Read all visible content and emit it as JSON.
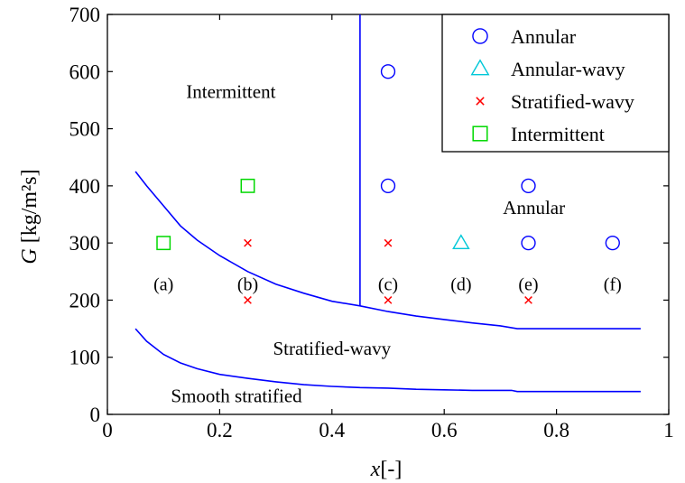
{
  "colors": {
    "boundary": "#0000ff",
    "annular": "#0000ff",
    "annular_wavy": "#00c8d8",
    "stratified_wavy": "#ff0000",
    "intermittent": "#00d800",
    "axis": "#000000"
  },
  "chart_data": {
    "type": "scatter",
    "title": "",
    "xlabel_italic": "x",
    "xlabel_unit": "[-]",
    "ylabel_italic": "G",
    "ylabel_unit": "[kg/m²s]",
    "xlim": [
      0,
      1
    ],
    "ylim": [
      0,
      700
    ],
    "xticks": [
      0,
      0.2,
      0.4,
      0.6,
      0.8,
      1
    ],
    "xtick_labels": [
      "0",
      "0.2",
      "0.4",
      "0.6",
      "0.8",
      "1"
    ],
    "yticks": [
      0,
      100,
      200,
      300,
      400,
      500,
      600,
      700
    ],
    "ytick_labels": [
      "0",
      "100",
      "200",
      "300",
      "400",
      "500",
      "600",
      "700"
    ],
    "grid": false,
    "legend_position": "top-right",
    "series": [
      {
        "name": "Annular",
        "marker": "circle",
        "color": "#0000ff",
        "points": [
          [
            0.5,
            600
          ],
          [
            0.5,
            400
          ],
          [
            0.75,
            400
          ],
          [
            0.75,
            300
          ],
          [
            0.9,
            300
          ]
        ]
      },
      {
        "name": "Annular-wavy",
        "marker": "triangle",
        "color": "#00c8d8",
        "points": [
          [
            0.63,
            300
          ]
        ]
      },
      {
        "name": "Stratified-wavy",
        "marker": "x",
        "color": "#ff0000",
        "points": [
          [
            0.25,
            300
          ],
          [
            0.25,
            200
          ],
          [
            0.5,
            300
          ],
          [
            0.5,
            200
          ],
          [
            0.75,
            200
          ]
        ]
      },
      {
        "name": "Intermittent",
        "marker": "square",
        "color": "#00d800",
        "points": [
          [
            0.1,
            300
          ],
          [
            0.25,
            400
          ]
        ]
      }
    ],
    "boundaries": [
      {
        "name": "intermittent-stratified-wavy-annular",
        "points": [
          [
            0.05,
            425
          ],
          [
            0.07,
            400
          ],
          [
            0.1,
            365
          ],
          [
            0.13,
            330
          ],
          [
            0.16,
            305
          ],
          [
            0.2,
            278
          ],
          [
            0.25,
            250
          ],
          [
            0.3,
            228
          ],
          [
            0.35,
            212
          ],
          [
            0.4,
            198
          ],
          [
            0.45,
            190
          ],
          [
            0.5,
            180
          ],
          [
            0.55,
            172
          ],
          [
            0.6,
            166
          ],
          [
            0.65,
            160
          ],
          [
            0.7,
            155
          ],
          [
            0.73,
            150
          ],
          [
            0.8,
            150
          ],
          [
            0.95,
            150
          ]
        ]
      },
      {
        "name": "intermittent-annular-transition",
        "points": [
          [
            0.45,
            190
          ],
          [
            0.45,
            700
          ]
        ]
      },
      {
        "name": "stratified-wavy-smooth-stratified",
        "points": [
          [
            0.05,
            150
          ],
          [
            0.07,
            128
          ],
          [
            0.1,
            105
          ],
          [
            0.13,
            90
          ],
          [
            0.16,
            80
          ],
          [
            0.2,
            70
          ],
          [
            0.25,
            63
          ],
          [
            0.3,
            57
          ],
          [
            0.35,
            52
          ],
          [
            0.4,
            49
          ],
          [
            0.45,
            47
          ],
          [
            0.5,
            46
          ],
          [
            0.55,
            44
          ],
          [
            0.6,
            43
          ],
          [
            0.65,
            42
          ],
          [
            0.72,
            42
          ],
          [
            0.73,
            40
          ],
          [
            0.8,
            40
          ],
          [
            0.95,
            40
          ]
        ]
      }
    ],
    "region_labels": [
      {
        "text": "Intermittent",
        "x": 0.22,
        "y": 565
      },
      {
        "text": "Annular",
        "x": 0.76,
        "y": 362
      },
      {
        "text": "Stratified-wavy",
        "x": 0.4,
        "y": 115
      },
      {
        "text": "Smooth stratified",
        "x": 0.23,
        "y": 32
      }
    ],
    "point_labels": [
      {
        "text": "(a)",
        "x": 0.1,
        "y": 268
      },
      {
        "text": "(b)",
        "x": 0.25,
        "y": 268
      },
      {
        "text": "(c)",
        "x": 0.5,
        "y": 268
      },
      {
        "text": "(d)",
        "x": 0.63,
        "y": 268
      },
      {
        "text": "(e)",
        "x": 0.75,
        "y": 268
      },
      {
        "text": "(f)",
        "x": 0.9,
        "y": 268
      }
    ]
  }
}
